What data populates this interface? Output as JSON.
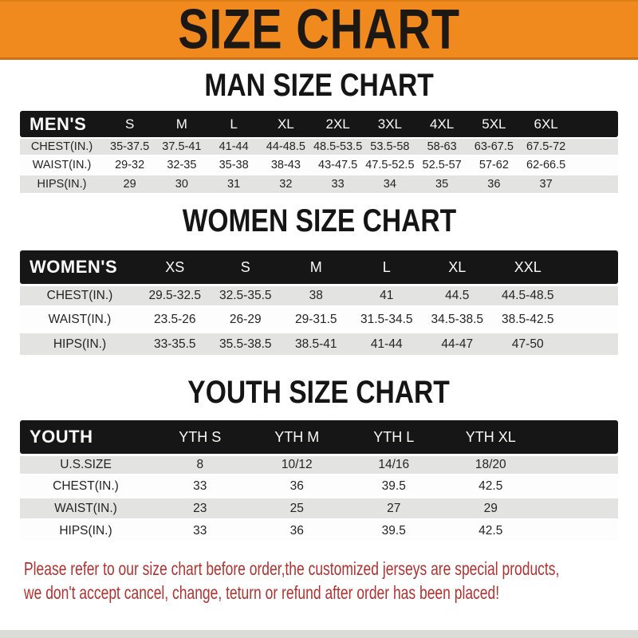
{
  "banner": {
    "title": "SIZE CHART"
  },
  "colors": {
    "banner_orange": "#F0891E",
    "header_bar_black": "#161616",
    "row_gray": "#E3E3E1",
    "note_red": "#B23230"
  },
  "sections": {
    "men": {
      "heading": "MAN SIZE CHART",
      "table": {
        "corner_label": "MEN'S",
        "columns": [
          "S",
          "M",
          "L",
          "XL",
          "2XL",
          "3XL",
          "4XL",
          "5XL",
          "6XL"
        ],
        "rows": [
          {
            "label": "CHEST(IN.)",
            "values": [
              "35-37.5",
              "37.5-41",
              "41-44",
              "44-48.5",
              "48.5-53.5",
              "53.5-58",
              "58-63",
              "63-67.5",
              "67.5-72"
            ]
          },
          {
            "label": "WAIST(IN.)",
            "values": [
              "29-32",
              "32-35",
              "35-38",
              "38-43",
              "43-47.5",
              "47.5-52.5",
              "52.5-57",
              "57-62",
              "62-66.5"
            ]
          },
          {
            "label": "HIPS(IN.)",
            "values": [
              "29",
              "30",
              "31",
              "32",
              "33",
              "34",
              "35",
              "36",
              "37"
            ]
          }
        ]
      }
    },
    "women": {
      "heading": "WOMEN SIZE CHART",
      "table": {
        "corner_label": "WOMEN'S",
        "columns": [
          "XS",
          "S",
          "M",
          "L",
          "XL",
          "XXL"
        ],
        "rows": [
          {
            "label": "CHEST(IN.)",
            "values": [
              "29.5-32.5",
              "32.5-35.5",
              "38",
              "41",
              "44.5",
              "44.5-48.5"
            ]
          },
          {
            "label": "WAIST(IN.)",
            "values": [
              "23.5-26",
              "26-29",
              "29-31.5",
              "31.5-34.5",
              "34.5-38.5",
              "38.5-42.5"
            ]
          },
          {
            "label": "HIPS(IN.)",
            "values": [
              "33-35.5",
              "35.5-38.5",
              "38.5-41",
              "41-44",
              "44-47",
              "47-50"
            ]
          }
        ]
      }
    },
    "youth": {
      "heading": "YOUTH SIZE CHART",
      "table": {
        "corner_label": "YOUTH",
        "columns": [
          "YTH S",
          "YTH M",
          "YTH L",
          "YTH XL"
        ],
        "rows": [
          {
            "label": "U.S.SIZE",
            "values": [
              "8",
              "10/12",
              "14/16",
              "18/20"
            ]
          },
          {
            "label": "CHEST(IN.)",
            "values": [
              "33",
              "36",
              "39.5",
              "42.5"
            ]
          },
          {
            "label": "WAIST(IN.)",
            "values": [
              "23",
              "25",
              "27",
              "29"
            ]
          },
          {
            "label": "HIPS(IN.)",
            "values": [
              "33",
              "36",
              "39.5",
              "42.5"
            ]
          }
        ]
      }
    }
  },
  "footer": {
    "line1": "Please refer to our size chart before order,the customized jerseys are special products,",
    "line2": "we don't accept cancel, change, teturn or refund after order has been placed!"
  },
  "chart_data": [
    {
      "type": "table",
      "title": "MAN SIZE CHART",
      "corner": "MEN'S",
      "columns": [
        "S",
        "M",
        "L",
        "XL",
        "2XL",
        "3XL",
        "4XL",
        "5XL",
        "6XL"
      ],
      "rows": [
        {
          "label": "CHEST(IN.)",
          "values": [
            "35-37.5",
            "37.5-41",
            "41-44",
            "44-48.5",
            "48.5-53.5",
            "53.5-58",
            "58-63",
            "63-67.5",
            "67.5-72"
          ]
        },
        {
          "label": "WAIST(IN.)",
          "values": [
            "29-32",
            "32-35",
            "35-38",
            "38-43",
            "43-47.5",
            "47.5-52.5",
            "52.5-57",
            "57-62",
            "62-66.5"
          ]
        },
        {
          "label": "HIPS(IN.)",
          "values": [
            "29",
            "30",
            "31",
            "32",
            "33",
            "34",
            "35",
            "36",
            "37"
          ]
        }
      ]
    },
    {
      "type": "table",
      "title": "WOMEN SIZE CHART",
      "corner": "WOMEN'S",
      "columns": [
        "XS",
        "S",
        "M",
        "L",
        "XL",
        "XXL"
      ],
      "rows": [
        {
          "label": "CHEST(IN.)",
          "values": [
            "29.5-32.5",
            "32.5-35.5",
            "38",
            "41",
            "44.5",
            "44.5-48.5"
          ]
        },
        {
          "label": "WAIST(IN.)",
          "values": [
            "23.5-26",
            "26-29",
            "29-31.5",
            "31.5-34.5",
            "34.5-38.5",
            "38.5-42.5"
          ]
        },
        {
          "label": "HIPS(IN.)",
          "values": [
            "33-35.5",
            "35.5-38.5",
            "38.5-41",
            "41-44",
            "44-47",
            "47-50"
          ]
        }
      ]
    },
    {
      "type": "table",
      "title": "YOUTH SIZE CHART",
      "corner": "YOUTH",
      "columns": [
        "YTH S",
        "YTH M",
        "YTH L",
        "YTH XL"
      ],
      "rows": [
        {
          "label": "U.S.SIZE",
          "values": [
            "8",
            "10/12",
            "14/16",
            "18/20"
          ]
        },
        {
          "label": "CHEST(IN.)",
          "values": [
            "33",
            "36",
            "39.5",
            "42.5"
          ]
        },
        {
          "label": "WAIST(IN.)",
          "values": [
            "23",
            "25",
            "27",
            "29"
          ]
        },
        {
          "label": "HIPS(IN.)",
          "values": [
            "33",
            "36",
            "39.5",
            "42.5"
          ]
        }
      ]
    }
  ]
}
